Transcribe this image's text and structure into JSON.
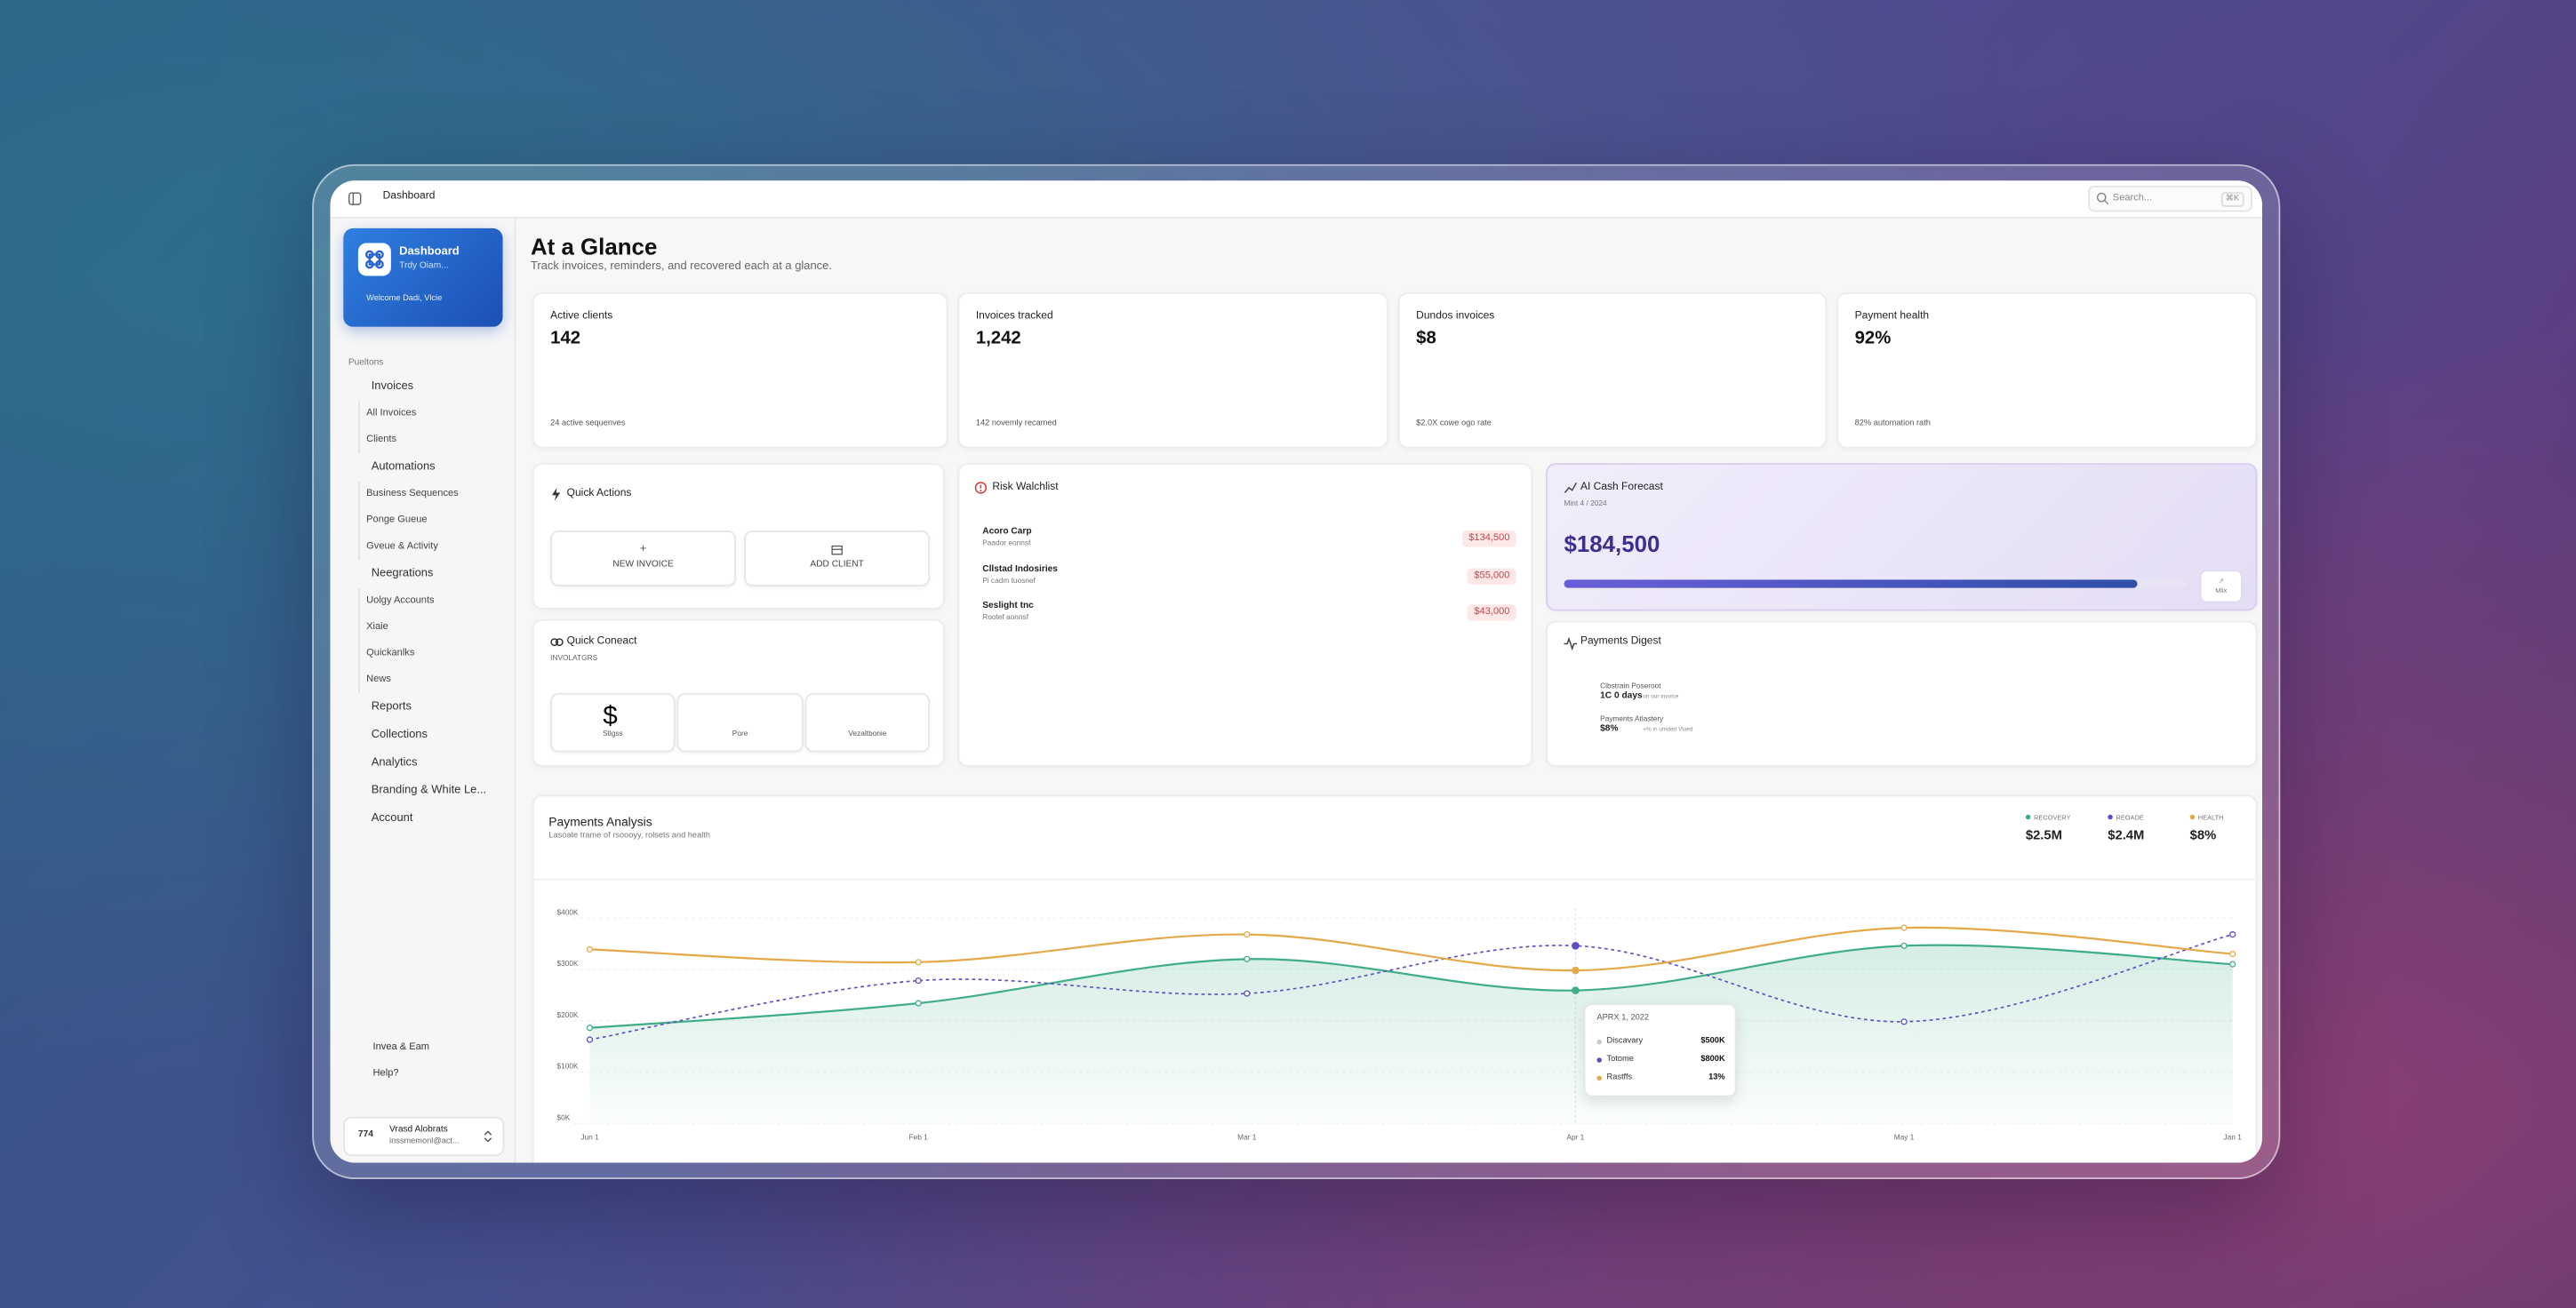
{
  "topbar": {
    "title": "Dashboard",
    "search": "Search...",
    "shortcut": "⌘K"
  },
  "sidebar": {
    "brand": {
      "title": "Dashboard",
      "subtitle": "Trdy Oiam...",
      "welcome": "Welcome Dadi, Vlcie"
    },
    "section": "Pueltons",
    "nav": [
      {
        "label": "Invoices",
        "children": [
          "All Invoices",
          "Clients"
        ]
      },
      {
        "label": "Automations",
        "children": [
          "Business Sequences",
          "Ponge Gueue",
          "Gveue & Activity"
        ]
      },
      {
        "label": "Neegrations",
        "children": [
          "Uolgy Accounts",
          "Xiaie",
          "Quickanlks",
          "News"
        ]
      },
      {
        "label": "Reports",
        "children": []
      },
      {
        "label": "Collections",
        "children": []
      },
      {
        "label": "Analytics",
        "children": []
      },
      {
        "label": "Branding & White Le...",
        "children": []
      },
      {
        "label": "Account",
        "children": []
      }
    ],
    "footer": [
      "Invea & Eam",
      "Help?"
    ],
    "user": {
      "initials": "774",
      "name": "Vrasd Alobrats",
      "email": "inssmemonl@act..."
    }
  },
  "header": {
    "title": "At a Glance",
    "subtitle": "Track invoices, reminders, and recovered each at a glance."
  },
  "stats": [
    {
      "label": "Active clients",
      "value": "142",
      "note": "24 active sequenves"
    },
    {
      "label": "Invoices tracked",
      "value": "1,242",
      "note": "142 novemly recamed"
    },
    {
      "label": "Dundos invoices",
      "value": "$8",
      "note": "$2.0X cowe ogo rate"
    },
    {
      "label": "Payment health",
      "value": "92%",
      "note": "82% automation rath"
    }
  ],
  "quick_actions": {
    "title": "Quick Actions",
    "buttons": [
      "NEW INVOICE",
      "ADD CLIENT"
    ]
  },
  "quick_connect": {
    "title": "Quick Coneact",
    "subtitle": "INVOLATGRS",
    "items": [
      "Stlgss",
      "Pore",
      "Vezaltbonie"
    ]
  },
  "risk": {
    "title": "Risk Walchlist",
    "rows": [
      {
        "name": "Acoro Carp",
        "detail": "Paador eonnsf",
        "amount": "$134,500"
      },
      {
        "name": "Cllstad Indosiries",
        "detail": "Pi cadm tuosnef",
        "amount": "$55,000"
      },
      {
        "name": "Seslight tnc",
        "detail": "Rootef aonnsf",
        "amount": "$43,000"
      }
    ]
  },
  "forecast": {
    "title": "AI Cash Forecast",
    "date": "Mint 4 / 2024",
    "amount": "$184,500",
    "progress": 92,
    "button": "Mlix"
  },
  "digest": {
    "title": "Payments Digest",
    "items": [
      {
        "label": "Clbstrain Poseroot",
        "value": "1C 0 days",
        "note": "on our invoice"
      },
      {
        "label": "Payments Atlastery",
        "value": "$8%",
        "note": "+% in umded Vlued"
      }
    ]
  },
  "chart_data": {
    "type": "line",
    "title": "Payments Analysis",
    "subtitle": "Lasoate trame of rsoooyy, rolsets and health",
    "categories": [
      "Jun 1",
      "Feb 1",
      "Mar 1",
      "Apr 1",
      "May 1",
      "Jan 1"
    ],
    "series": [
      {
        "name": "RECOVERY",
        "total": "$2.5M",
        "color": "#3fae86",
        "values": [
          186,
          234,
          320,
          259,
          346,
          310
        ]
      },
      {
        "name": "REOADE",
        "total": "$2.4M",
        "color": "#5a4fc4",
        "dashed": true,
        "values": [
          163,
          278,
          253,
          346,
          198,
          368
        ]
      },
      {
        "name": "HEALTH",
        "total": "$8%",
        "color": "#e5a94a",
        "values": [
          339,
          314,
          368,
          298,
          381,
          330
        ]
      }
    ],
    "ylim": [
      0,
      400
    ],
    "yticks": [
      {
        "value": 0,
        "label": "$0K"
      },
      {
        "value": 100,
        "label": "$100K"
      },
      {
        "value": 200,
        "label": "$200K"
      },
      {
        "value": 300,
        "label": "$300K"
      },
      {
        "value": 400,
        "label": "$400K"
      }
    ],
    "grid": true,
    "tooltip": {
      "title": "APRX 1, 2022",
      "rows": [
        {
          "name": "Discavary",
          "value": "$500K",
          "color": "#c9c9cf"
        },
        {
          "name": "Totome",
          "value": "$800K",
          "color": "#5a4fc4"
        },
        {
          "name": "Rastffs",
          "value": "13%",
          "color": "#e5a94a"
        }
      ]
    }
  }
}
